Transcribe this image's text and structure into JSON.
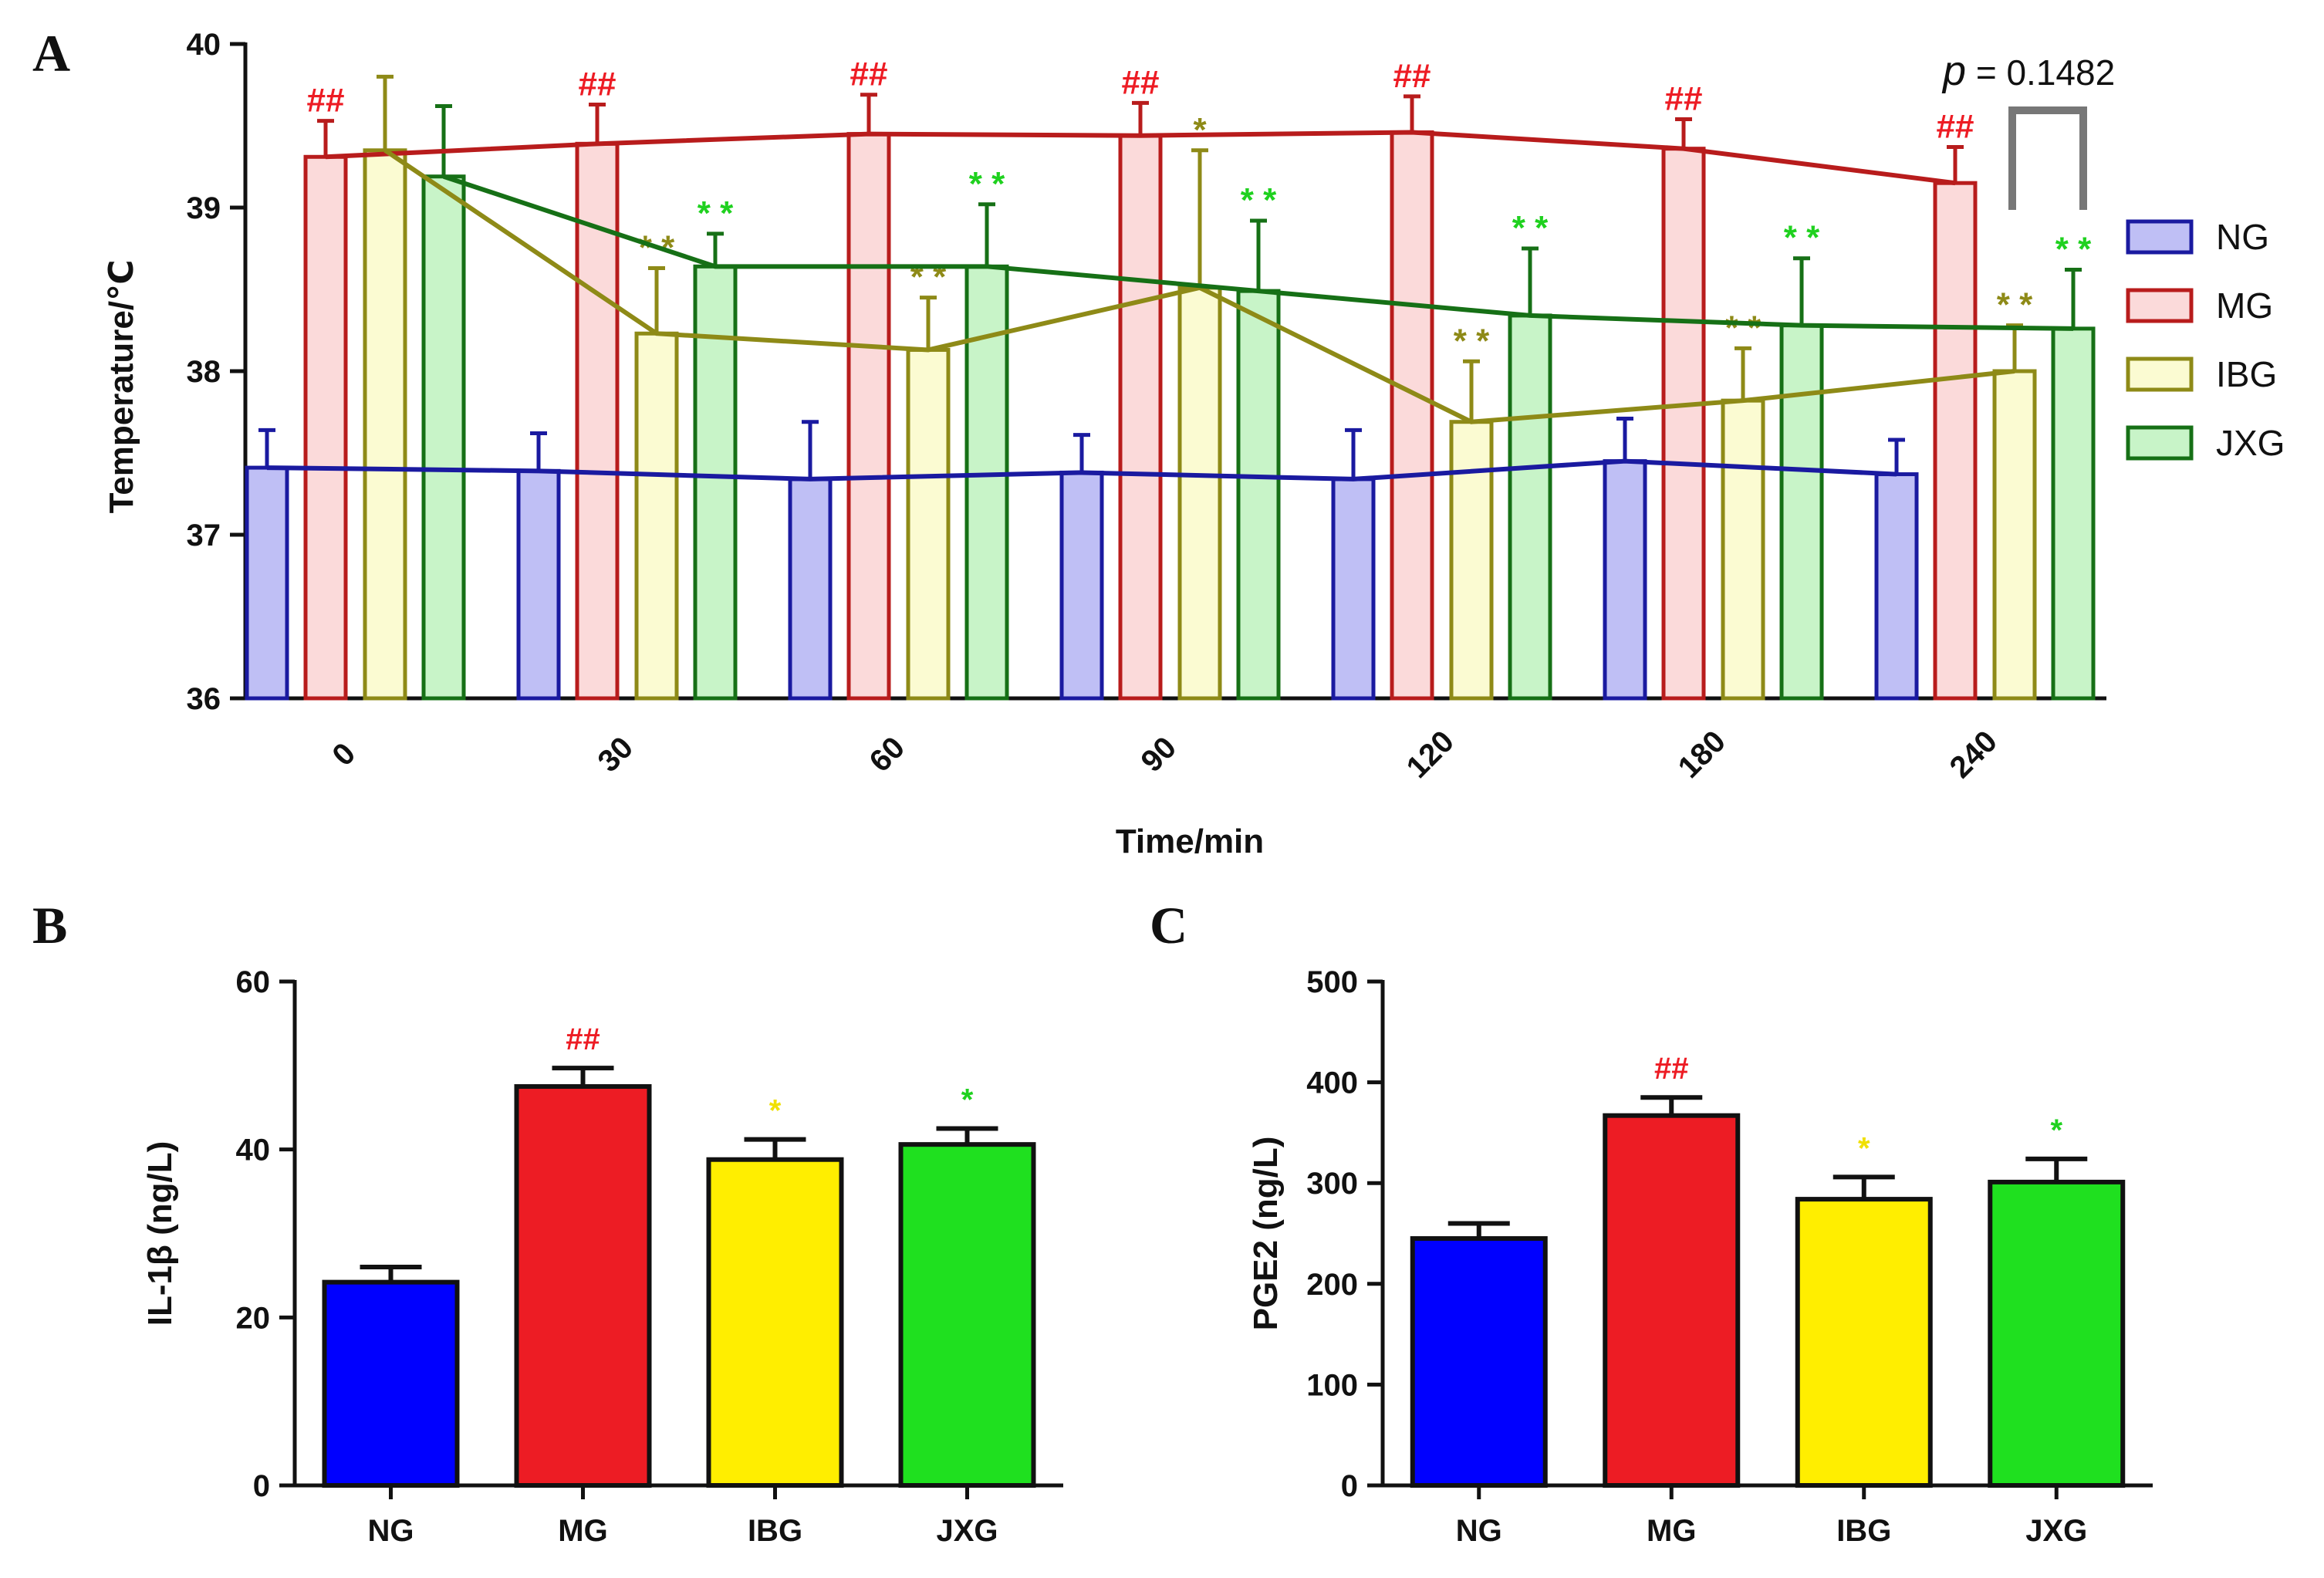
{
  "chart_data": [
    {
      "panel": "A",
      "type": "bar",
      "xlabel": "Time/min",
      "ylabel": "Temperature/℃",
      "ylim": [
        36,
        40
      ],
      "yticks": [
        "36",
        "37",
        "38",
        "39",
        "40"
      ],
      "categories": [
        "0",
        "30",
        "60",
        "90",
        "120",
        "180",
        "240"
      ],
      "series": [
        {
          "name": "NG",
          "values": [
            37.41,
            37.39,
            37.34,
            37.38,
            37.34,
            37.45,
            37.37
          ],
          "errors": [
            0.23,
            0.23,
            0.35,
            0.23,
            0.3,
            0.26,
            0.21
          ],
          "marks": [
            "",
            "",
            "",
            "",
            "",
            "",
            ""
          ]
        },
        {
          "name": "MG",
          "values": [
            39.31,
            39.39,
            39.45,
            39.44,
            39.46,
            39.36,
            39.15
          ],
          "errors": [
            0.22,
            0.24,
            0.24,
            0.2,
            0.22,
            0.18,
            0.22
          ],
          "marks": [
            "##",
            "##",
            "##",
            "##",
            "##",
            "##",
            "##"
          ]
        },
        {
          "name": "IBG",
          "values": [
            39.35,
            38.23,
            38.13,
            38.51,
            37.69,
            37.82,
            38.0
          ],
          "errors": [
            0.45,
            0.4,
            0.32,
            0.84,
            0.37,
            0.32,
            0.28
          ],
          "marks": [
            "",
            "**",
            "**",
            "*",
            "**",
            "**",
            "**"
          ]
        },
        {
          "name": "JXG",
          "values": [
            39.19,
            38.64,
            38.64,
            38.49,
            38.34,
            38.28,
            38.26
          ],
          "errors": [
            0.43,
            0.2,
            0.38,
            0.43,
            0.41,
            0.41,
            0.36
          ],
          "marks": [
            "",
            "**",
            "**",
            "**",
            "**",
            "**",
            "**"
          ]
        }
      ],
      "legend": [
        "NG",
        "MG",
        "IBG",
        "JXG"
      ],
      "annotation": {
        "p_symbol": "p",
        "p_text": " = 0.1482"
      }
    },
    {
      "panel": "B",
      "type": "bar",
      "xlabel": "",
      "ylabel": "IL-1β  (ng/L)",
      "ylim": [
        0,
        60
      ],
      "yticks": [
        "0",
        "20",
        "40",
        "60"
      ],
      "categories": [
        "NG",
        "MG",
        "IBG",
        "JXG"
      ],
      "values": [
        24.2,
        47.5,
        38.8,
        40.6
      ],
      "errors": [
        1.8,
        2.2,
        2.4,
        1.9
      ],
      "marks": [
        "",
        "##",
        "*",
        "*"
      ]
    },
    {
      "panel": "C",
      "type": "bar",
      "xlabel": "",
      "ylabel": "PGE2  (ng/L)",
      "ylim": [
        0,
        500
      ],
      "yticks": [
        "0",
        "100",
        "200",
        "300",
        "400",
        "500"
      ],
      "categories": [
        "NG",
        "MG",
        "IBG",
        "JXG"
      ],
      "values": [
        245,
        367,
        284,
        301
      ],
      "errors": [
        15,
        18,
        22,
        23
      ],
      "marks": [
        "",
        "##",
        "*",
        "*"
      ]
    }
  ],
  "colors": {
    "NG_fill_A": "#bfbff5",
    "NG_edge_A": "#1a1aa0",
    "MG_fill_A": "#fbdada",
    "MG_edge_A": "#b81c1c",
    "IBG_fill_A": "#fbfbd2",
    "IBG_edge_A": "#8e8a17",
    "JXG_fill_A": "#c8f4c8",
    "JXG_edge_A": "#167016",
    "NG_solid": "#0000ff",
    "MG_solid": "#ed1c24",
    "IBG_solid": "#ffee00",
    "JXG_solid": "#1fe01f",
    "mark_MG": "#ed1c24",
    "mark_IBG_A": "#8e8a17",
    "mark_JXG_A": "#1fd11f",
    "mark_IBG_BC": "#f0e000",
    "mark_JXG_BC": "#1fd11f",
    "bracket": "#777777"
  }
}
